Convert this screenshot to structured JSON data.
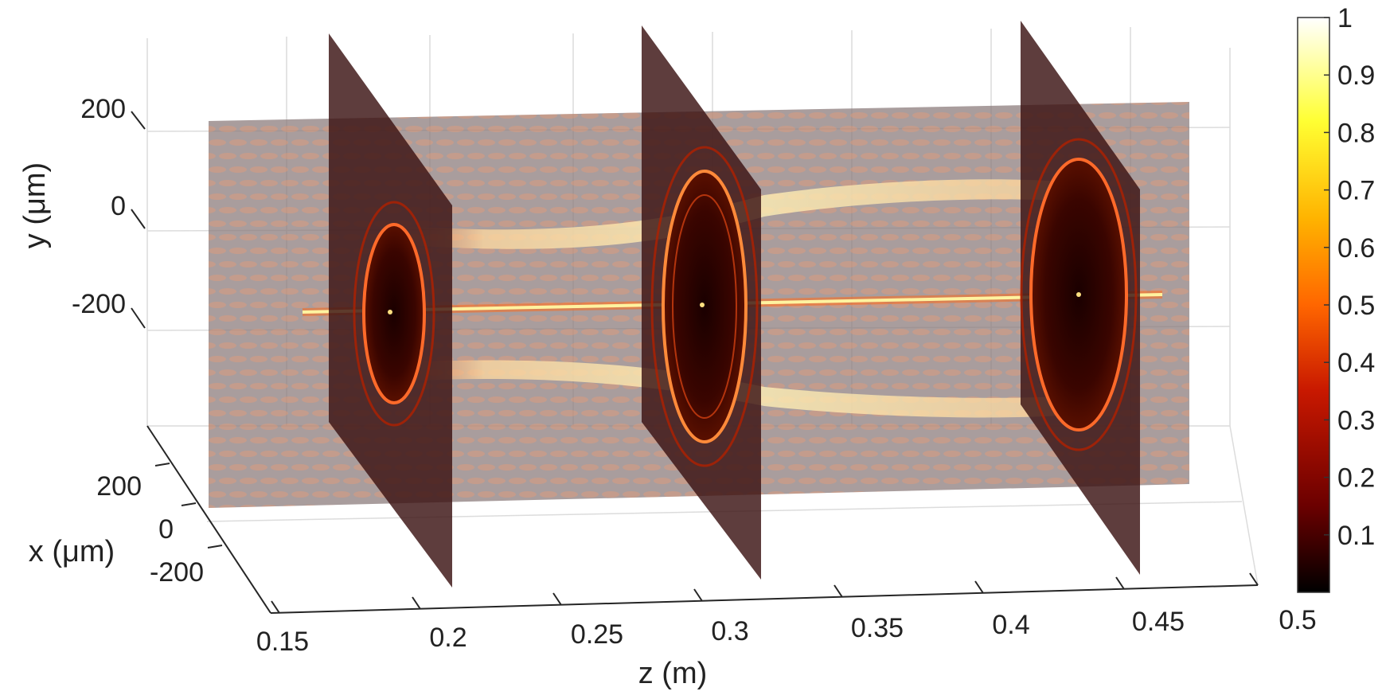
{
  "chart_data": {
    "type": "heatmap",
    "style": "3d-volume-slices",
    "title": "",
    "xlabel": "z (m)",
    "ylabel": "y (μm)",
    "zlabel": "x (μm)",
    "z_ticks": [
      "0.15",
      "0.2",
      "0.25",
      "0.3",
      "0.35",
      "0.4",
      "0.45",
      "0.5"
    ],
    "z_range": [
      0.13,
      0.5
    ],
    "y_ticks": [
      "200",
      "0",
      "-200"
    ],
    "x_ticks": [
      "200",
      "0",
      "-200"
    ],
    "slices": {
      "transverse_z_positions": [
        0.2,
        0.31,
        0.45
      ],
      "longitudinal_plane": "x = 0"
    },
    "features": {
      "on_axis_beam": "bright central line along z at y = 0 (x = 0)",
      "off_axis_bands": "two bright bands symmetric about the axis, widening with z"
    },
    "colorbar": {
      "ticks": [
        "0.1",
        "0.2",
        "0.3",
        "0.4",
        "0.5",
        "0.6",
        "0.7",
        "0.8",
        "0.9",
        "1"
      ],
      "range": [
        0,
        1
      ],
      "colormap": "hot",
      "colors": [
        "#000000",
        "#6b0000",
        "#c81800",
        "#ff6600",
        "#ffb300",
        "#ffff33",
        "#ffffff"
      ]
    },
    "grid": true
  }
}
